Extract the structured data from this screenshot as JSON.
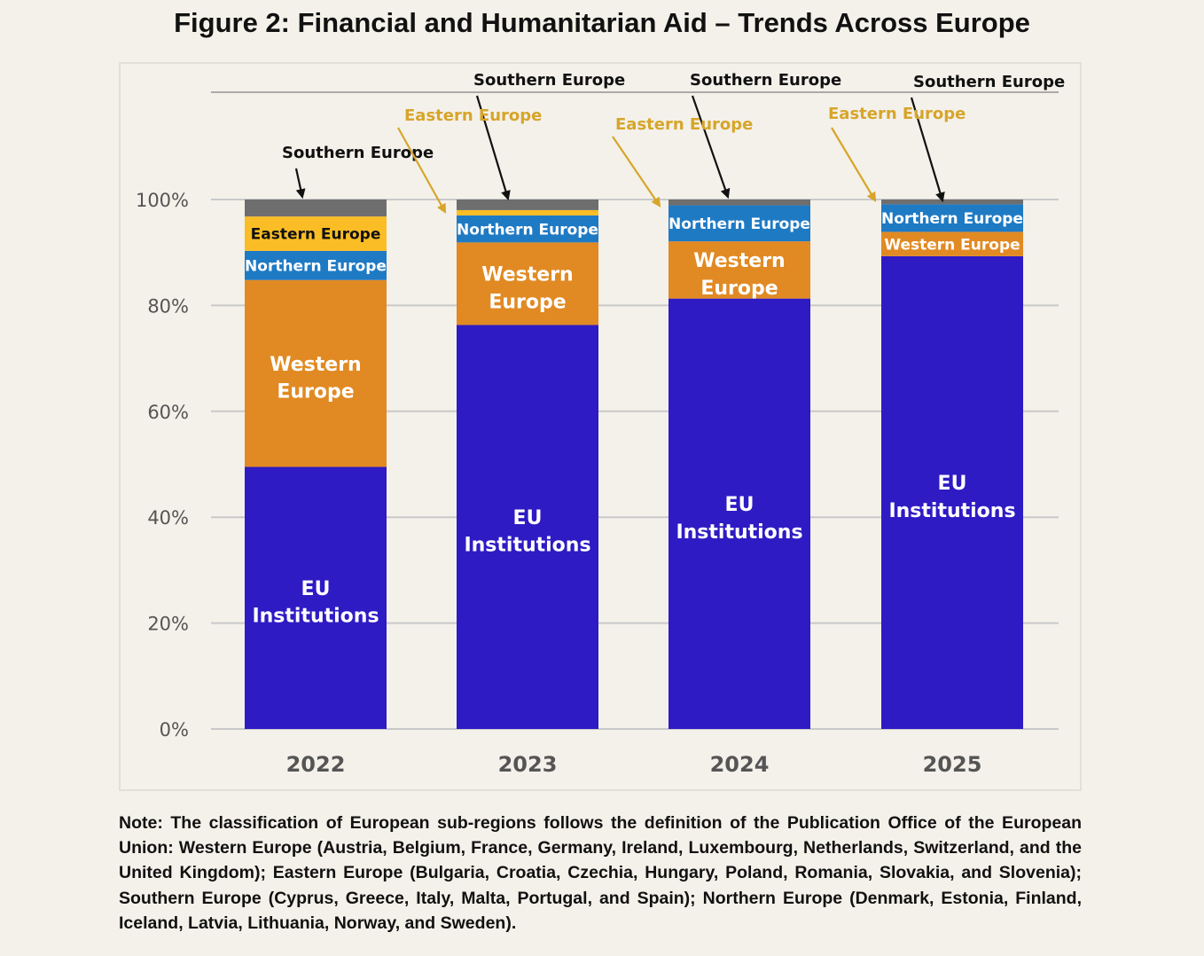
{
  "figure": {
    "title": "Figure 2: Financial and Humanitarian Aid – Trends Across Europe",
    "note": "Note: The classification of European sub-regions follows the definition of the Publication Office of the European Union: Western Europe (Austria, Belgium, France, Germany, Ireland, Luxembourg, Netherlands, Switzerland, and the United Kingdom); Eastern Europe (Bulgaria, Croatia, Czechia, Hungary, Poland, Romania, Slovakia, and Slovenia); Southern Europe (Cyprus, Greece, Italy, Malta, Portugal, and Spain); Northern Europe (Denmark, Estonia, Finland, Iceland, Latvia, Lithuania, Norway, and Sweden)."
  },
  "chart_data": {
    "type": "bar",
    "stacked": true,
    "title": "Figure 2: Financial and Humanitarian Aid – Trends Across Europe",
    "xlabel": "",
    "ylabel": "",
    "ylim": [
      0,
      100
    ],
    "yticks": [
      "0%",
      "20%",
      "40%",
      "60%",
      "80%",
      "100%"
    ],
    "categories": [
      "2022",
      "2023",
      "2024",
      "2025"
    ],
    "series": [
      {
        "name": "EU Institutions",
        "color": "#2e1bc4",
        "values": [
          49.5,
          76.3,
          81.3,
          89.3
        ]
      },
      {
        "name": "Western Europe",
        "color": "#e18a23",
        "values": [
          35.3,
          15.6,
          10.8,
          4.6
        ]
      },
      {
        "name": "Northern Europe",
        "color": "#1f7ac4",
        "values": [
          5.5,
          5.1,
          6.8,
          5.2
        ]
      },
      {
        "name": "Eastern Europe",
        "color": "#fbbd25",
        "values": [
          6.5,
          1.0,
          0.0,
          0.0
        ]
      },
      {
        "name": "Southern Europe",
        "color": "#6e6e6e",
        "values": [
          3.2,
          2.0,
          1.1,
          0.9
        ]
      }
    ],
    "segment_labels": [
      [
        "EU Institutions",
        "Western Europe",
        "Northern Europe",
        "Eastern Europe",
        ""
      ],
      [
        "EU Institutions",
        "Western Europe",
        "Northern Europe",
        "",
        ""
      ],
      [
        "EU Institutions",
        "Western Europe",
        "Northern Europe",
        "",
        ""
      ],
      [
        "EU Institutions",
        "Western Europe",
        "Northern Europe",
        "",
        ""
      ]
    ],
    "callouts": [
      {
        "category": "2022",
        "label": "Southern Europe",
        "color": "#111111"
      },
      {
        "category": "2023",
        "label": "Southern Europe",
        "color": "#111111"
      },
      {
        "category": "2023",
        "label": "Eastern Europe",
        "color": "#d7a52a"
      },
      {
        "category": "2024",
        "label": "Southern Europe",
        "color": "#111111"
      },
      {
        "category": "2024",
        "label": "Eastern Europe",
        "color": "#d7a52a"
      },
      {
        "category": "2025",
        "label": "Southern Europe",
        "color": "#111111"
      },
      {
        "category": "2025",
        "label": "Eastern Europe",
        "color": "#d7a52a"
      }
    ]
  }
}
